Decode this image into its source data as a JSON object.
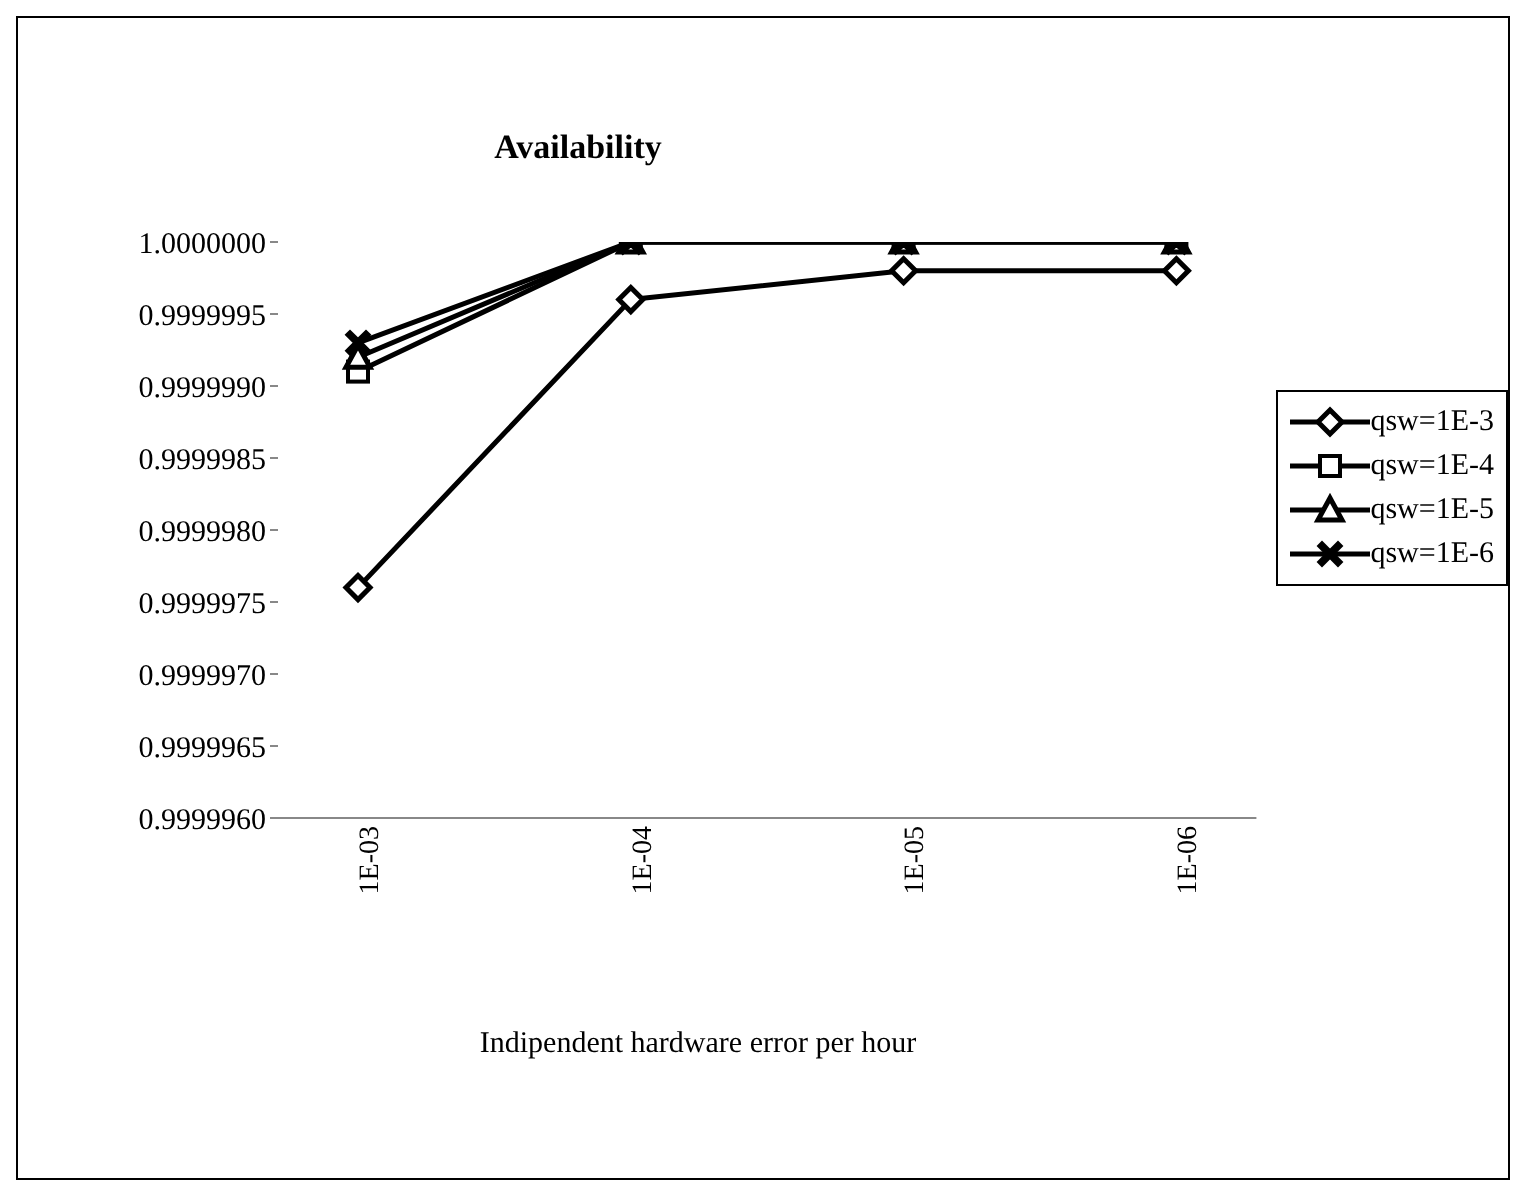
{
  "chart_data": {
    "type": "line",
    "title": "Availability",
    "xlabel": "Indipendent hardware error per hour",
    "categories": [
      "1E-03",
      "1E-04",
      "1E-05",
      "1E-06"
    ],
    "series": [
      {
        "name": "qsw=1E-3",
        "color": "#000000",
        "marker": "diamond",
        "values": [
          0.9999976,
          0.9999996,
          0.9999998,
          0.9999998
        ]
      },
      {
        "name": "qsw=1E-4",
        "color": "#000000",
        "marker": "square",
        "values": [
          0.9999991,
          1.0,
          1.0,
          1.0
        ]
      },
      {
        "name": "qsw=1E-5",
        "color": "#000000",
        "marker": "triangle",
        "values": [
          0.9999992,
          1.0,
          1.0,
          1.0
        ]
      },
      {
        "name": "qsw=1E-6",
        "color": "#000000",
        "marker": "cross",
        "values": [
          0.9999993,
          1.0,
          1.0,
          1.0
        ]
      }
    ],
    "ylim": [
      0.999996,
      1.0
    ],
    "yticks": [
      {
        "value": 0.999996,
        "label": "0.9999960"
      },
      {
        "value": 0.9999965,
        "label": "0.9999965"
      },
      {
        "value": 0.999997,
        "label": "0.9999970"
      },
      {
        "value": 0.9999975,
        "label": "0.9999975"
      },
      {
        "value": 0.999998,
        "label": "0.9999980"
      },
      {
        "value": 0.9999985,
        "label": "0.9999985"
      },
      {
        "value": 0.999999,
        "label": "0.9999990"
      },
      {
        "value": 0.9999995,
        "label": "0.9999995"
      },
      {
        "value": 1.0,
        "label": "1.0000000"
      }
    ],
    "grid": false,
    "legend": "right"
  }
}
